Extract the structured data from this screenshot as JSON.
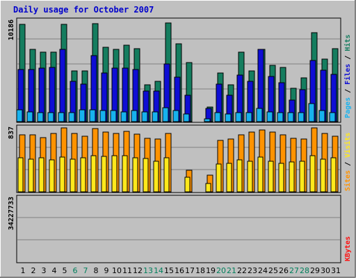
{
  "chart_data": [
    {
      "type": "bar",
      "title": "Daily usage for October 2007",
      "categories": [
        "1",
        "2",
        "3",
        "4",
        "5",
        "6",
        "7",
        "8",
        "9",
        "10",
        "11",
        "12",
        "13",
        "14",
        "15",
        "16",
        "17",
        "18",
        "19",
        "20",
        "21",
        "22",
        "23",
        "24",
        "25",
        "26",
        "27",
        "28",
        "29",
        "30",
        "31"
      ],
      "weekend_days": [
        "6",
        "7",
        "13",
        "14",
        "20",
        "21",
        "27",
        "28"
      ],
      "ymax_label": "10186",
      "ylim": [
        0,
        10186
      ],
      "legend": {
        "pages": "Pages",
        "files": "Files",
        "hits": "Hits",
        "sep1": " / ",
        "sep2": " / "
      },
      "series": [
        {
          "name": "Hits",
          "color": "#157d5f",
          "values": [
            9800,
            7300,
            7000,
            7000,
            9800,
            5100,
            5100,
            9900,
            7500,
            7300,
            7700,
            7400,
            3700,
            4100,
            10000,
            7900,
            6000,
            0,
            1500,
            4900,
            3700,
            7000,
            5100,
            7300,
            5700,
            5500,
            3400,
            4400,
            9000,
            6300,
            7400
          ]
        },
        {
          "name": "Files",
          "color": "#0e0ed4",
          "values": [
            5300,
            5300,
            5400,
            5500,
            7300,
            4100,
            3800,
            6700,
            4900,
            5400,
            5400,
            5300,
            3100,
            3100,
            5800,
            4500,
            2700,
            0,
            1300,
            3800,
            2700,
            4700,
            4100,
            7300,
            4600,
            3900,
            2200,
            3200,
            6200,
            5200,
            4800
          ]
        },
        {
          "name": "Pages",
          "color": "#17b2ee",
          "values": [
            1200,
            1000,
            900,
            900,
            900,
            900,
            1200,
            1200,
            1100,
            1100,
            1000,
            1100,
            1000,
            1000,
            1400,
            1100,
            800,
            0,
            300,
            900,
            800,
            900,
            900,
            1300,
            1000,
            900,
            900,
            900,
            1800,
            1100,
            900
          ]
        }
      ]
    },
    {
      "type": "bar",
      "categories": [
        "1",
        "2",
        "3",
        "4",
        "5",
        "6",
        "7",
        "8",
        "9",
        "10",
        "11",
        "12",
        "13",
        "14",
        "15",
        "16",
        "17",
        "18",
        "19",
        "20",
        "21",
        "22",
        "23",
        "24",
        "25",
        "26",
        "27",
        "28",
        "29",
        "30",
        "31"
      ],
      "ymax_label": "837",
      "ylim": [
        0,
        837
      ],
      "legend": {
        "sites": "Sites",
        "visits": "Visits",
        "sep": " / "
      },
      "series": [
        {
          "name": "Visits",
          "color": "#ff9300",
          "values": [
            740,
            740,
            700,
            760,
            830,
            760,
            720,
            820,
            770,
            760,
            780,
            750,
            690,
            680,
            760,
            0,
            280,
            0,
            220,
            670,
            680,
            740,
            770,
            800,
            770,
            740,
            690,
            680,
            830,
            760,
            720
          ]
        },
        {
          "name": "Sites",
          "color": "#ffe81c",
          "values": [
            440,
            420,
            440,
            410,
            450,
            420,
            440,
            470,
            460,
            470,
            470,
            440,
            430,
            400,
            440,
            0,
            190,
            0,
            110,
            360,
            370,
            410,
            400,
            450,
            400,
            370,
            390,
            400,
            470,
            420,
            440
          ]
        }
      ]
    },
    {
      "type": "bar",
      "categories": [
        "1",
        "2",
        "3",
        "4",
        "5",
        "6",
        "7",
        "8",
        "9",
        "10",
        "11",
        "12",
        "13",
        "14",
        "15",
        "16",
        "17",
        "18",
        "19",
        "20",
        "21",
        "22",
        "23",
        "24",
        "25",
        "26",
        "27",
        "28",
        "29",
        "30",
        "31"
      ],
      "ymax_label": "34227733",
      "ylim": [
        0,
        34227733
      ],
      "legend": {
        "kbytes": "KBytes"
      },
      "series": [
        {
          "name": "KBytes",
          "color": "#ff0f0f",
          "values": [
            9900,
            11700,
            12000,
            11400,
            16400,
            13800,
            24800,
            11600,
            11800,
            4900,
            14500,
            12700,
            6200,
            6200,
            11700,
            7600,
            3900,
            0,
            5800,
            20300,
            4900,
            9800,
            8600,
            20900,
            6100,
            4500,
            11700,
            12600,
            34200,
            34400,
            23900
          ]
        }
      ]
    }
  ]
}
